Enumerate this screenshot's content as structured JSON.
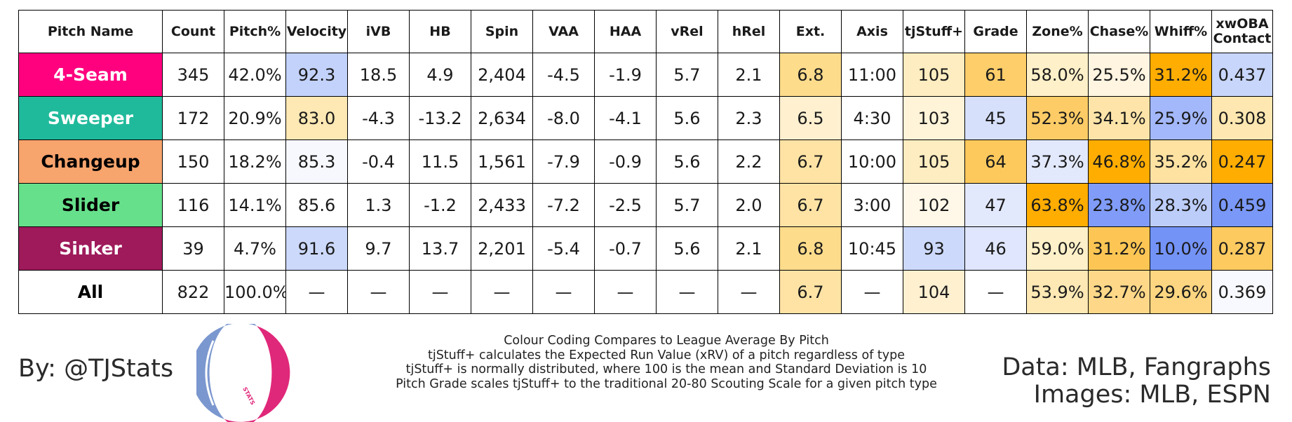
{
  "chart_data": {
    "type": "table",
    "columns": [
      "Pitch Name",
      "Count",
      "Pitch%",
      "Velocity",
      "iVB",
      "HB",
      "Spin",
      "VAA",
      "HAA",
      "vRel",
      "hRel",
      "Ext.",
      "Axis",
      "tjStuff+",
      "Grade",
      "Zone%",
      "Chase%",
      "Whiff%",
      "xwOBA\nContact"
    ],
    "rows": [
      {
        "cells": [
          "4-Seam",
          "345",
          "42.0%",
          "92.3",
          "18.5",
          "4.9",
          "2,404",
          "-4.5",
          "-1.9",
          "5.7",
          "2.1",
          "6.8",
          "11:00",
          "105",
          "61",
          "58.0%",
          "25.5%",
          "31.2%",
          "0.437"
        ],
        "name_bg": "#ff007f",
        "name_color": "#ffffff",
        "cell_bg": {
          "3": "#c3d2fb",
          "11": "#fddc8c",
          "13": "#feedc0",
          "14": "#fdce6a",
          "15": "#fef0c8",
          "16": "#fff5e0",
          "17": "#ffad00",
          "18": "#c8d6fb"
        }
      },
      {
        "cells": [
          "Sweeper",
          "172",
          "20.9%",
          "83.0",
          "-4.3",
          "-13.2",
          "2,634",
          "-8.0",
          "-4.1",
          "5.6",
          "2.3",
          "6.5",
          "4:30",
          "103",
          "45",
          "52.3%",
          "34.1%",
          "25.9%",
          "0.308"
        ],
        "name_bg": "#1fba9b",
        "name_color": "#ffffff",
        "cell_bg": {
          "3": "#fee8b4",
          "11": "#fff0d0",
          "13": "#fff3d8",
          "14": "#d6e0fb",
          "15": "#fdcc66",
          "16": "#fee4a8",
          "17": "#a3b8fa",
          "18": "#fee7b0"
        }
      },
      {
        "cells": [
          "Changeup",
          "150",
          "18.2%",
          "85.3",
          "-0.4",
          "11.5",
          "1,561",
          "-7.9",
          "-0.9",
          "5.6",
          "2.2",
          "6.7",
          "10:00",
          "105",
          "64",
          "37.3%",
          "46.8%",
          "35.2%",
          "0.247"
        ],
        "name_bg": "#f8a46d",
        "name_color": "#000000",
        "cell_bg": {
          "3": "#f7f8fe",
          "11": "#fee3a4",
          "13": "#feedc0",
          "14": "#fdc95c",
          "15": "#e3e9fd",
          "16": "#ffad00",
          "17": "#fee2a2",
          "18": "#ffad00"
        }
      },
      {
        "cells": [
          "Slider",
          "116",
          "14.1%",
          "85.6",
          "1.3",
          "-1.2",
          "2,433",
          "-7.2",
          "-2.5",
          "5.7",
          "2.0",
          "6.7",
          "3:00",
          "102",
          "47",
          "63.8%",
          "23.8%",
          "28.3%",
          "0.459"
        ],
        "name_bg": "#66e08b",
        "name_color": "#000000",
        "cell_bg": {
          "11": "#fee3a4",
          "13": "#fff8e8",
          "14": "#e3e9fd",
          "15": "#ffad00",
          "16": "#809cf8",
          "17": "#bccdfa",
          "18": "#7a98f7"
        }
      },
      {
        "cells": [
          "Sinker",
          "39",
          "4.7%",
          "91.6",
          "9.7",
          "13.7",
          "2,201",
          "-5.4",
          "-0.7",
          "5.6",
          "2.1",
          "6.8",
          "10:45",
          "93",
          "46",
          "59.0%",
          "31.2%",
          "10.0%",
          "0.287"
        ],
        "name_bg": "#9e1a5b",
        "name_color": "#ffffff",
        "cell_bg": {
          "3": "#ccd9fb",
          "11": "#fddc8c",
          "13": "#ccd9fb",
          "14": "#dfe6fd",
          "15": "#fef0c8",
          "16": "#fdc654",
          "17": "#7493f7",
          "18": "#fdca60"
        }
      },
      {
        "cells": [
          "All",
          "822",
          "100.0%",
          "—",
          "—",
          "—",
          "—",
          "—",
          "—",
          "—",
          "—",
          "6.7",
          "—",
          "104",
          "—",
          "53.9%",
          "32.7%",
          "29.6%",
          "0.369"
        ],
        "name_bg": "#ffffff",
        "name_color": "#000000",
        "cell_bg": {
          "11": "#fee3a4",
          "13": "#fff0d0",
          "15": "#fee8b4",
          "16": "#fed888",
          "17": "#fed580",
          "18": "#f8f9fe"
        }
      }
    ]
  },
  "footer": {
    "byline": "By: @TJStats",
    "logo_text": "STATS",
    "notes": [
      "Colour Coding Compares to League Average By Pitch",
      "tjStuff+ calculates the Expected Run Value (xRV) of a pitch regardless of type",
      "tjStuff+ is normally distributed, where 100 is the mean and Standard Deviation is 10",
      "Pitch Grade scales tjStuff+ to the traditional 20-80 Scouting Scale for a given pitch type"
    ],
    "source_data": "Data: MLB, Fangraphs",
    "source_images": "Images: MLB, ESPN"
  },
  "colors": {
    "logo_blue": "#7b97cf",
    "logo_pink": "#e0287a",
    "border": "#000000"
  }
}
